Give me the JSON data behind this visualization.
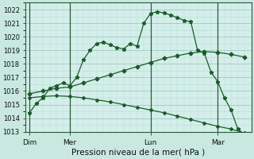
{
  "background_color": "#c8e8e0",
  "plot_bg_color": "#d4eeea",
  "grid_color_major": "#a0c8c0",
  "grid_color_minor": "#b8ddd8",
  "line_color": "#1a5c28",
  "title": "Pression niveau de la mer( hPa )",
  "ylim": [
    1013.0,
    1022.5
  ],
  "yticks": [
    1013,
    1014,
    1015,
    1016,
    1017,
    1018,
    1019,
    1020,
    1021,
    1022
  ],
  "xtick_labels": [
    "Dim",
    "Mer",
    "Lun",
    "Mar"
  ],
  "xtick_positions": [
    0,
    3,
    9,
    14
  ],
  "vline_positions": [
    0,
    3,
    9,
    14
  ],
  "xlim": [
    -0.3,
    16.5
  ],
  "line1_x": [
    0,
    0.5,
    1.0,
    1.5,
    2.0,
    2.5,
    3.0,
    3.5,
    4.0,
    4.5,
    5.0,
    5.5,
    6.0,
    6.5,
    7.0,
    7.5,
    8.0,
    8.5,
    9.0,
    9.5,
    10.0,
    10.5,
    11.0,
    11.5,
    12.0,
    12.5,
    13.0,
    13.5,
    14.0,
    14.5,
    15.0,
    15.5,
    16.0
  ],
  "line1_y": [
    1014.4,
    1015.1,
    1015.5,
    1016.2,
    1016.4,
    1016.6,
    1016.4,
    1017.0,
    1018.3,
    1019.0,
    1019.5,
    1019.6,
    1019.4,
    1019.2,
    1019.1,
    1019.5,
    1019.3,
    1021.0,
    1021.7,
    1021.85,
    1021.75,
    1021.6,
    1021.4,
    1021.2,
    1021.1,
    1019.0,
    1018.8,
    1017.4,
    1016.7,
    1015.5,
    1014.6,
    1013.2,
    1012.8
  ],
  "line2_x": [
    0,
    1,
    2,
    3,
    4,
    5,
    6,
    7,
    8,
    9,
    10,
    11,
    12,
    13,
    14,
    15,
    16
  ],
  "line2_y": [
    1015.8,
    1016.0,
    1016.2,
    1016.3,
    1016.6,
    1016.9,
    1017.2,
    1017.5,
    1017.8,
    1018.1,
    1018.4,
    1018.6,
    1018.8,
    1018.9,
    1018.85,
    1018.7,
    1018.5
  ],
  "line3_x": [
    0,
    1,
    2,
    3,
    4,
    5,
    6,
    7,
    8,
    9,
    10,
    11,
    12,
    13,
    14,
    15,
    16
  ],
  "line3_y": [
    1015.5,
    1015.6,
    1015.65,
    1015.6,
    1015.5,
    1015.35,
    1015.2,
    1015.0,
    1014.8,
    1014.6,
    1014.4,
    1014.15,
    1013.9,
    1013.65,
    1013.4,
    1013.2,
    1012.9
  ]
}
